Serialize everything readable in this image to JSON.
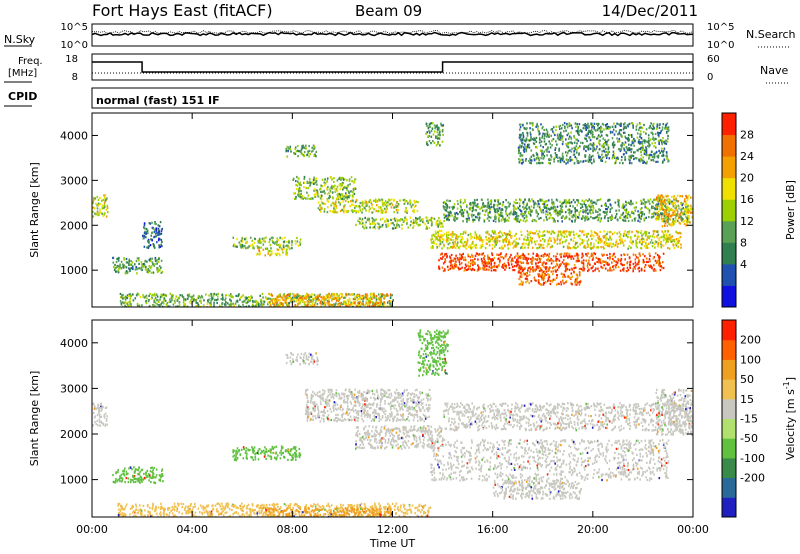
{
  "header": {
    "station": "Fort Hays East (fitACF)",
    "beam": "Beam 09",
    "date": "14/Dec/2011"
  },
  "param_panels": {
    "nsky_label": "N.Sky",
    "nsearch_label": "N.Search",
    "left_ticks_noise": [
      "10^5",
      "10^0"
    ],
    "right_ticks_noise": [
      "10^5",
      "10^0"
    ],
    "freq_label_line1": "Freq.",
    "freq_label_line2": "[MHz]",
    "freq_ticks": [
      "18",
      "8"
    ],
    "nave_label": "Nave",
    "nave_ticks": [
      "60",
      "0"
    ],
    "cpid_label": "CPID",
    "cpid_text": "normal (fast) 151 IF"
  },
  "chart_data": [
    {
      "type": "heatmap",
      "panel": "power",
      "ylabel": "Slant Range [km]",
      "xlabel": "",
      "xlim_hours": [
        0,
        24
      ],
      "ylim_km": [
        180,
        4500
      ],
      "ytick_labels": [
        "1000",
        "2000",
        "3000",
        "4000"
      ],
      "colorbar_label": "Power [dB]",
      "colorbar_ticks": [
        "28",
        "24",
        "20",
        "16",
        "12",
        "8",
        "4"
      ],
      "colorbar_colors": [
        "#1010e0",
        "#2050b0",
        "#2f7f4f",
        "#5aa055",
        "#9cd000",
        "#f0e000",
        "#f4a000",
        "#f07000",
        "#ff2000"
      ],
      "scatter_regions": [
        {
          "t": [
            0.0,
            0.6
          ],
          "r": [
            2200,
            2700
          ],
          "level": 0.55
        },
        {
          "t": [
            0.8,
            2.8
          ],
          "r": [
            950,
            1300
          ],
          "level": 0.35
        },
        {
          "t": [
            2.0,
            2.8
          ],
          "r": [
            1500,
            2100
          ],
          "level": 0.2
        },
        {
          "t": [
            5.6,
            8.3
          ],
          "r": [
            1500,
            1750
          ],
          "level": 0.45
        },
        {
          "t": [
            6.5,
            7.8
          ],
          "r": [
            1350,
            1500
          ],
          "level": 0.65
        },
        {
          "t": [
            7.7,
            9.0
          ],
          "r": [
            3550,
            3800
          ],
          "level": 0.35
        },
        {
          "t": [
            8.0,
            10.5
          ],
          "r": [
            2600,
            3100
          ],
          "level": 0.45
        },
        {
          "t": [
            9.0,
            13.0
          ],
          "r": [
            2300,
            2600
          ],
          "level": 0.55
        },
        {
          "t": [
            10.5,
            14.0
          ],
          "r": [
            1950,
            2200
          ],
          "level": 0.45
        },
        {
          "t": [
            13.3,
            14.0
          ],
          "r": [
            3800,
            4300
          ],
          "level": 0.35
        },
        {
          "t": [
            13.5,
            23.5
          ],
          "r": [
            1500,
            1900
          ],
          "level": 0.6
        },
        {
          "t": [
            13.8,
            22.8
          ],
          "r": [
            1000,
            1400
          ],
          "level": 0.95
        },
        {
          "t": [
            17.0,
            19.5
          ],
          "r": [
            700,
            1000
          ],
          "level": 0.9
        },
        {
          "t": [
            14.0,
            23.8
          ],
          "r": [
            2100,
            2600
          ],
          "level": 0.35
        },
        {
          "t": [
            17.0,
            23.0
          ],
          "r": [
            3400,
            4300
          ],
          "level": 0.3
        },
        {
          "t": [
            22.5,
            24.0
          ],
          "r": [
            2000,
            2700
          ],
          "level": 0.7
        },
        {
          "t": [
            1.0,
            12.0
          ],
          "r": [
            180,
            500
          ],
          "level": 0.4
        },
        {
          "t": [
            7.0,
            12.0
          ],
          "r": [
            180,
            500
          ],
          "level": 0.75
        }
      ]
    },
    {
      "type": "heatmap",
      "panel": "velocity",
      "ylabel": "Slant Range [km]",
      "xlabel": "Time UT",
      "xlim_hours": [
        0,
        24
      ],
      "ylim_km": [
        180,
        4500
      ],
      "ytick_labels": [
        "1000",
        "2000",
        "3000",
        "4000"
      ],
      "xtick_labels": [
        "00:00",
        "04:00",
        "08:00",
        "12:00",
        "16:00",
        "20:00",
        "00:00"
      ],
      "colorbar_label": "Velocity [m s",
      "colorbar_label_exp": "-1",
      "colorbar_label_close": "]",
      "colorbar_ticks": [
        "200",
        "100",
        "50",
        "15",
        "-15",
        "-50",
        "-100",
        "-200"
      ],
      "colorbar_colors": [
        "#2020c0",
        "#2a6a9a",
        "#3a8a4a",
        "#60c040",
        "#b0e070",
        "#c8c8c0",
        "#f0c050",
        "#f0a020",
        "#ff6000",
        "#ff2000"
      ],
      "scatter_regions": [
        {
          "t": [
            0.0,
            0.6
          ],
          "r": [
            2200,
            2700
          ],
          "color": "#c8c8c0"
        },
        {
          "t": [
            0.8,
            2.8
          ],
          "r": [
            950,
            1300
          ],
          "color": "#60c040"
        },
        {
          "t": [
            5.6,
            8.3
          ],
          "r": [
            1450,
            1750
          ],
          "color": "#60c040"
        },
        {
          "t": [
            7.7,
            9.0
          ],
          "r": [
            3550,
            3800
          ],
          "color": "#c8c8c0"
        },
        {
          "t": [
            8.5,
            13.5
          ],
          "r": [
            2300,
            3000
          ],
          "color": "#c8c8c0"
        },
        {
          "t": [
            10.5,
            14.0
          ],
          "r": [
            1700,
            2200
          ],
          "color": "#c8c8c0"
        },
        {
          "t": [
            13.0,
            14.2
          ],
          "r": [
            3300,
            4300
          ],
          "color": "#60c040"
        },
        {
          "t": [
            13.5,
            23.0
          ],
          "r": [
            1000,
            1900
          ],
          "color": "#c8c8c0"
        },
        {
          "t": [
            16.0,
            19.5
          ],
          "r": [
            600,
            1000
          ],
          "color": "#c8c8c0"
        },
        {
          "t": [
            14.0,
            23.8
          ],
          "r": [
            2100,
            2700
          ],
          "color": "#c8c8c0"
        },
        {
          "t": [
            22.5,
            24.0
          ],
          "r": [
            2000,
            3000
          ],
          "color": "#c8c8c0"
        },
        {
          "t": [
            1.0,
            13.5
          ],
          "r": [
            180,
            500
          ],
          "color": "#f0c050"
        },
        {
          "t": [
            7.0,
            12.0
          ],
          "r": [
            180,
            400
          ],
          "color": "#f0a020"
        }
      ]
    }
  ]
}
